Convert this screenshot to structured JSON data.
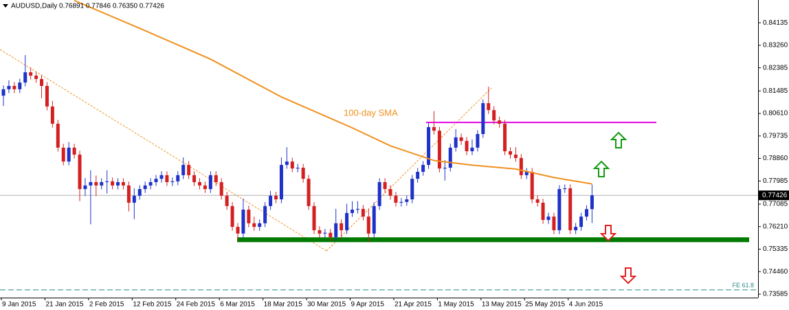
{
  "chart_data": {
    "type": "candlestick",
    "title": "AUDUSD,Daily  0.76891 0.77846 0.76350 0.77426",
    "annotation": "100-day SMA",
    "bull_color": "#1e32c8",
    "bear_color": "#d42020",
    "categories": [
      "9 Jan 2015",
      null,
      null,
      null,
      null,
      null,
      null,
      null,
      "21 Jan 2015",
      null,
      null,
      null,
      null,
      null,
      null,
      null,
      "2 Feb 2015",
      null,
      null,
      null,
      null,
      null,
      null,
      null,
      "12 Feb 2015",
      null,
      null,
      null,
      null,
      null,
      null,
      null,
      "24 Feb 2015",
      null,
      null,
      null,
      null,
      null,
      null,
      null,
      "6 Mar 2015",
      null,
      null,
      null,
      null,
      null,
      null,
      null,
      "18 Mar 2015",
      null,
      null,
      null,
      null,
      null,
      null,
      null,
      "30 Mar 2015",
      null,
      null,
      null,
      null,
      null,
      null,
      null,
      "9 Apr 2015",
      null,
      null,
      null,
      null,
      null,
      null,
      null,
      "21 Apr 2015",
      null,
      null,
      null,
      null,
      null,
      null,
      null,
      "1 May 2015",
      null,
      null,
      null,
      null,
      null,
      null,
      null,
      "13 May 2015",
      null,
      null,
      null,
      null,
      null,
      null,
      null,
      "25 May 2015",
      null,
      null,
      null,
      null,
      null,
      null,
      null,
      "4 Jun 2015",
      null,
      null,
      null,
      null
    ],
    "open": [
      0.813,
      0.8155,
      0.8168,
      0.8155,
      0.8181,
      0.8221,
      0.8208,
      0.8195,
      0.8168,
      0.8088,
      0.8021,
      0.7928,
      0.7874,
      0.7928,
      0.7901,
      0.7767,
      0.7781,
      0.7794,
      0.7781,
      0.7794,
      0.7797,
      0.7781,
      0.7794,
      0.7781,
      0.7714,
      0.7741,
      0.7767,
      0.7781,
      0.7794,
      0.7807,
      0.7821,
      0.7794,
      0.7797,
      0.7821,
      0.7861,
      0.7821,
      0.7794,
      0.7781,
      0.7767,
      0.7821,
      0.7794,
      0.7741,
      0.7701,
      0.762,
      0.7594,
      0.7687,
      0.7634,
      0.762,
      0.7634,
      0.7701,
      0.7741,
      0.7727,
      0.7861,
      0.7874,
      0.7847,
      0.785,
      0.7807,
      0.7701,
      0.7607,
      0.7594,
      0.7597,
      0.758,
      0.7634,
      0.7607,
      0.7674,
      0.7687,
      0.769,
      0.766,
      0.7594,
      0.7701,
      0.7794,
      0.7767,
      0.7741,
      0.7714,
      0.7717,
      0.7727,
      0.7807,
      0.7834,
      0.7861,
      0.8008,
      0.7994,
      0.7847,
      0.785,
      0.7928,
      0.7968,
      0.7954,
      0.7914,
      0.7928,
      0.7981,
      0.8101,
      0.8074,
      0.8034,
      0.8021,
      0.7914,
      0.7901,
      0.7888,
      0.7821,
      0.7834,
      0.7727,
      0.7714,
      0.7647,
      0.766,
      0.7607,
      0.7767,
      0.777,
      0.7607,
      0.762,
      0.766,
      0.76891
    ],
    "high": [
      0.817,
      0.819,
      0.8183,
      0.8196,
      0.8288,
      0.824,
      0.8223,
      0.821,
      0.8183,
      0.811,
      0.8036,
      0.7943,
      0.795,
      0.7943,
      0.7916,
      0.781,
      0.784,
      0.782,
      0.7809,
      0.784,
      0.7812,
      0.7809,
      0.7809,
      0.7796,
      0.777,
      0.7782,
      0.7796,
      0.7809,
      0.7822,
      0.7836,
      0.7836,
      0.7812,
      0.7836,
      0.789,
      0.7876,
      0.7836,
      0.7809,
      0.7796,
      0.7836,
      0.7836,
      0.7809,
      0.7756,
      0.7716,
      0.7635,
      0.773,
      0.7702,
      0.766,
      0.7649,
      0.7716,
      0.776,
      0.7756,
      0.789,
      0.793,
      0.7889,
      0.7865,
      0.7865,
      0.7822,
      0.7716,
      0.7622,
      0.7612,
      0.7612,
      0.769,
      0.7649,
      0.771,
      0.772,
      0.772,
      0.7705,
      0.769,
      0.7716,
      0.7809,
      0.7809,
      0.7782,
      0.7756,
      0.7732,
      0.7742,
      0.7822,
      0.7849,
      0.7876,
      0.8023,
      0.807,
      0.8009,
      0.788,
      0.7943,
      0.8,
      0.7983,
      0.7969,
      0.796,
      0.7996,
      0.8116,
      0.8165,
      0.8089,
      0.8049,
      0.8036,
      0.7929,
      0.793,
      0.7903,
      0.7849,
      0.7849,
      0.7742,
      0.7729,
      0.7675,
      0.7675,
      0.7782,
      0.7785,
      0.7785,
      0.7635,
      0.7675,
      0.7704,
      0.77846
    ],
    "low": [
      0.809,
      0.814,
      0.814,
      0.814,
      0.8166,
      0.8193,
      0.818,
      0.812,
      0.8073,
      0.8006,
      0.7913,
      0.7859,
      0.7859,
      0.7886,
      0.772,
      0.774,
      0.763,
      0.774,
      0.7766,
      0.775,
      0.7766,
      0.7766,
      0.7766,
      0.768,
      0.765,
      0.7726,
      0.7752,
      0.7766,
      0.7779,
      0.7792,
      0.7779,
      0.7779,
      0.7782,
      0.7806,
      0.7806,
      0.7779,
      0.7766,
      0.7752,
      0.7752,
      0.7779,
      0.7726,
      0.7686,
      0.7605,
      0.7565,
      0.7579,
      0.7619,
      0.7605,
      0.7605,
      0.7619,
      0.7686,
      0.7712,
      0.7712,
      0.7846,
      0.7832,
      0.7832,
      0.7792,
      0.7686,
      0.7592,
      0.7579,
      0.7579,
      0.7565,
      0.7565,
      0.7575,
      0.7592,
      0.7659,
      0.7672,
      0.7645,
      0.756,
      0.7579,
      0.7686,
      0.7752,
      0.7726,
      0.7699,
      0.7699,
      0.7702,
      0.7712,
      0.7792,
      0.7819,
      0.7846,
      0.7979,
      0.7832,
      0.78,
      0.7835,
      0.7913,
      0.7939,
      0.7899,
      0.7899,
      0.7913,
      0.7966,
      0.8059,
      0.8019,
      0.8006,
      0.7899,
      0.7886,
      0.7873,
      0.7806,
      0.7806,
      0.7712,
      0.7699,
      0.7632,
      0.7632,
      0.7592,
      0.7592,
      0.7752,
      0.7592,
      0.7592,
      0.7605,
      0.7645,
      0.7635
    ],
    "close": [
      0.8155,
      0.8168,
      0.8155,
      0.8181,
      0.8221,
      0.8208,
      0.8195,
      0.8168,
      0.8088,
      0.8021,
      0.7928,
      0.7874,
      0.7928,
      0.7901,
      0.7767,
      0.7781,
      0.7794,
      0.7781,
      0.7794,
      0.7797,
      0.7781,
      0.7794,
      0.7781,
      0.7714,
      0.7741,
      0.7767,
      0.7781,
      0.7794,
      0.7807,
      0.7821,
      0.7794,
      0.7797,
      0.7821,
      0.7861,
      0.7821,
      0.7794,
      0.7781,
      0.7767,
      0.7821,
      0.7794,
      0.7741,
      0.7701,
      0.762,
      0.7594,
      0.7687,
      0.7634,
      0.762,
      0.7634,
      0.7701,
      0.7741,
      0.7727,
      0.7861,
      0.7874,
      0.7847,
      0.785,
      0.7807,
      0.7701,
      0.7607,
      0.7594,
      0.7597,
      0.758,
      0.7634,
      0.7607,
      0.7674,
      0.7687,
      0.769,
      0.766,
      0.7594,
      0.7701,
      0.7794,
      0.7767,
      0.7741,
      0.7714,
      0.7717,
      0.7727,
      0.7807,
      0.7834,
      0.7861,
      0.8008,
      0.7994,
      0.7847,
      0.785,
      0.7928,
      0.7968,
      0.7954,
      0.7914,
      0.7928,
      0.7981,
      0.8101,
      0.8074,
      0.8034,
      0.8021,
      0.7914,
      0.7901,
      0.7888,
      0.7821,
      0.7834,
      0.7727,
      0.7714,
      0.7647,
      0.766,
      0.7607,
      0.7767,
      0.777,
      0.7607,
      0.762,
      0.766,
      0.76891,
      0.77426
    ],
    "sma": {
      "name": "100-day SMA",
      "color": "#f0901e",
      "x": [
        13,
        25,
        38,
        51,
        64,
        71,
        79,
        86,
        94,
        101,
        108
      ],
      "values": [
        0.85,
        0.8392,
        0.8272,
        0.8125,
        0.8005,
        0.7935,
        0.7878,
        0.786,
        0.7845,
        0.7812,
        0.7787
      ]
    },
    "levels": [
      {
        "value": 0.8026,
        "color": "#e000e0",
        "style": "solid"
      },
      {
        "value": 0.757,
        "color": "#007a00",
        "style": "thick"
      },
      {
        "value": 0.7375,
        "color": "#2a8a8a",
        "style": "dashed",
        "label": "FE 61.8"
      }
    ],
    "ylim": [
      0.7345,
      0.8502
    ],
    "yticks": [
      0.84135,
      {
        "value": 0.8326,
        "label": "0.83260"
      },
      0.82385,
      0.81485,
      {
        "value": 0.8061,
        "label": "0.80610"
      },
      0.79735,
      {
        "value": 0.7886,
        "label": "0.78860"
      },
      0.77985,
      0.77085,
      {
        "value": 0.7621,
        "label": "0.76210"
      },
      0.75335,
      {
        "value": 0.7446,
        "label": "0.74460"
      },
      0.73585
    ]
  }
}
